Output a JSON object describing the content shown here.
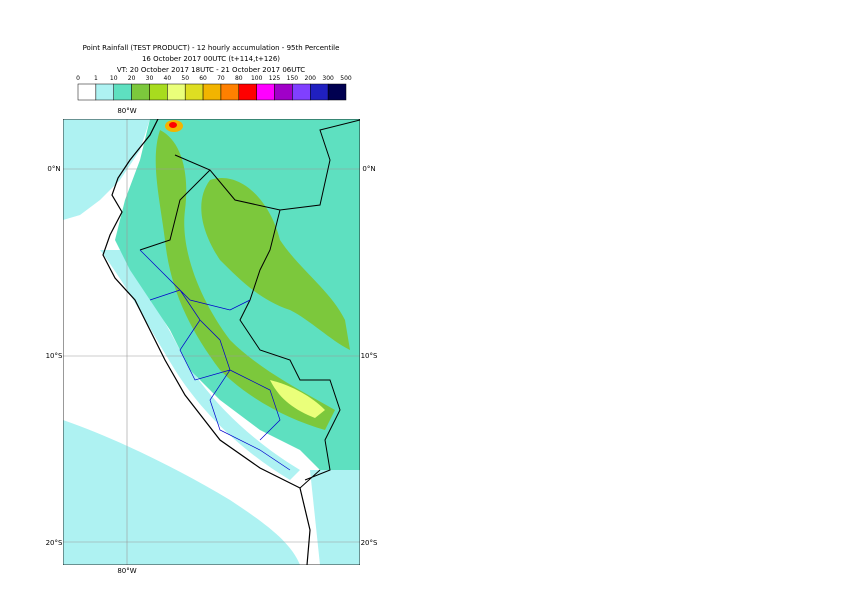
{
  "header": {
    "title": "Point Rainfall (TEST PRODUCT) - 12 hourly accumulation - 95th Percentile",
    "subtitle": "16 October 2017 00UTC (t+114,t+126)",
    "validity": "VT: 20 October 2017 18UTC - 21 October 2017 06UTC"
  },
  "legend": {
    "labels": [
      "0",
      "1",
      "10",
      "20",
      "30",
      "40",
      "50",
      "60",
      "70",
      "80",
      "100",
      "125",
      "150",
      "200",
      "300",
      "500"
    ],
    "colors": [
      "#ffffff",
      "#aef2f2",
      "#5ee0c0",
      "#7cc83c",
      "#a8dc1e",
      "#eaff7a",
      "#dede22",
      "#f2b400",
      "#ff8000",
      "#ff0000",
      "#ff00ff",
      "#a000c8",
      "#8040ff",
      "#2020c0",
      "#000050"
    ]
  },
  "map": {
    "lon_labels": [
      "80°W",
      "80°W"
    ],
    "lat_labels": [
      "0°N",
      "10°S",
      "20°S"
    ]
  }
}
